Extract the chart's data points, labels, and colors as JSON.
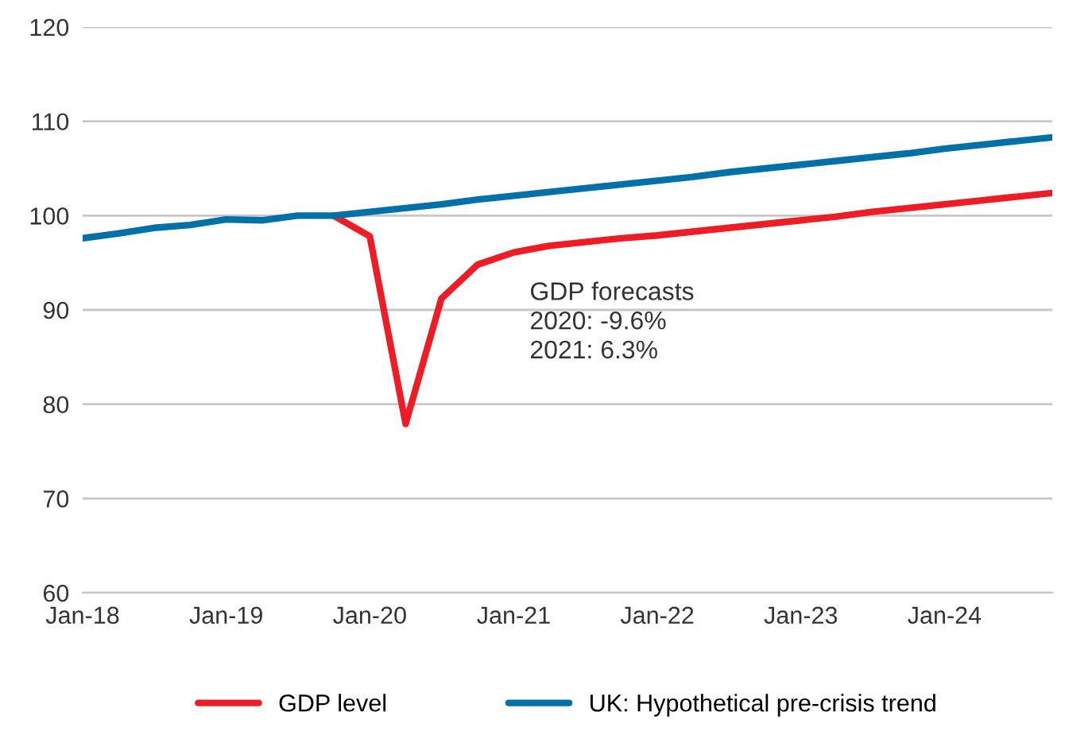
{
  "chart_data": {
    "type": "line",
    "x": [
      "2018-01",
      "2018-04",
      "2018-07",
      "2018-10",
      "2019-01",
      "2019-04",
      "2019-07",
      "2019-10",
      "2020-01",
      "2020-04",
      "2020-07",
      "2020-10",
      "2021-01",
      "2021-04",
      "2021-07",
      "2021-10",
      "2022-01",
      "2022-04",
      "2022-07",
      "2022-10",
      "2023-01",
      "2023-04",
      "2023-07",
      "2023-10",
      "2024-01",
      "2024-04",
      "2024-07",
      "2024-10"
    ],
    "series": [
      {
        "name": "GDP level",
        "color": "#ee1c25",
        "values": [
          null,
          null,
          null,
          null,
          null,
          null,
          null,
          100.0,
          97.8,
          77.9,
          91.2,
          94.8,
          96.1,
          96.8,
          97.2,
          97.6,
          97.9,
          98.3,
          98.7,
          99.1,
          99.5,
          99.9,
          100.4,
          100.8,
          101.2,
          101.6,
          102.0,
          102.4
        ]
      },
      {
        "name": "UK: Hypothetical pre-crisis trend",
        "color": "#0070a8",
        "values": [
          97.6,
          98.1,
          98.7,
          99.0,
          99.6,
          99.5,
          100.0,
          100.0,
          100.4,
          100.8,
          101.2,
          101.7,
          102.1,
          102.5,
          102.9,
          103.3,
          103.7,
          104.1,
          104.6,
          105.0,
          105.4,
          105.8,
          106.2,
          106.6,
          107.1,
          107.5,
          107.9,
          108.3
        ]
      }
    ],
    "xlim": [
      "2018-01",
      "2024-10"
    ],
    "xticks": [
      {
        "value": "2018-01",
        "label": "Jan-18"
      },
      {
        "value": "2019-01",
        "label": "Jan-19"
      },
      {
        "value": "2020-01",
        "label": "Jan-20"
      },
      {
        "value": "2021-01",
        "label": "Jan-21"
      },
      {
        "value": "2022-01",
        "label": "Jan-22"
      },
      {
        "value": "2023-01",
        "label": "Jan-23"
      },
      {
        "value": "2024-01",
        "label": "Jan-24"
      }
    ],
    "ylim": [
      60,
      120
    ],
    "yticks": [
      60,
      70,
      80,
      90,
      100,
      110,
      120
    ],
    "grid": "y",
    "legend": "bottom",
    "marker": "none",
    "line_style": "solid",
    "annotations": [
      "GDP forecasts\n2020: -9.6%\n2021: 6.3%"
    ]
  }
}
